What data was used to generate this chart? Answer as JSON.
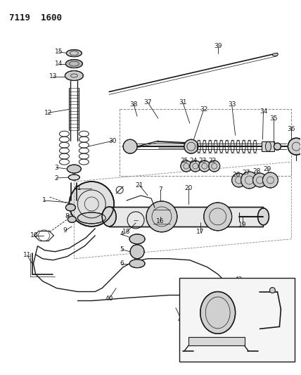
{
  "title": "7119 1600",
  "bg": "#ffffff",
  "lc": "#1a1a1a",
  "fig_w": 4.28,
  "fig_h": 5.33,
  "dpi": 100
}
